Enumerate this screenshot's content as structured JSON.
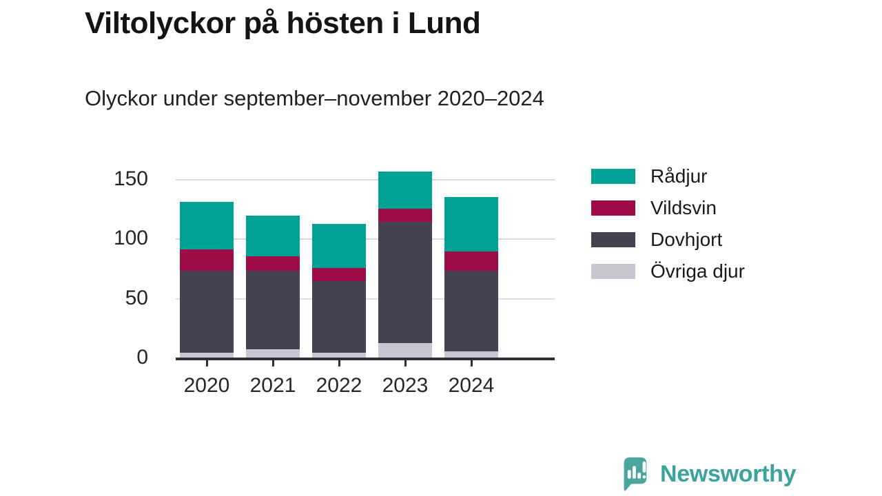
{
  "header": {
    "title": "Viltolyckor på hösten i Lund",
    "subtitle": "Olyckor under september–november 2020–2024"
  },
  "chart_data": {
    "type": "bar",
    "stacked": true,
    "title": "Viltolyckor på hösten i Lund",
    "subtitle": "Olyckor under september–november 2020–2024",
    "categories": [
      "2020",
      "2021",
      "2022",
      "2023",
      "2024"
    ],
    "series": [
      {
        "name": "Övriga djur",
        "color": "#c8c7d1",
        "values": [
          4,
          7,
          4,
          12,
          5
        ]
      },
      {
        "name": "Dovhjort",
        "color": "#444250",
        "values": [
          69,
          66,
          60,
          102,
          68
        ]
      },
      {
        "name": "Vildsvin",
        "color": "#a00c48",
        "values": [
          18,
          12,
          11,
          11,
          16
        ]
      },
      {
        "name": "Rådjur",
        "color": "#00a296",
        "values": [
          40,
          34,
          37,
          31,
          46
        ]
      }
    ],
    "totals": [
      131,
      119,
      112,
      156,
      135
    ],
    "xlabel": "",
    "ylabel": "",
    "y_ticks": [
      0,
      50,
      100,
      150
    ],
    "ylim": [
      0,
      162
    ],
    "grid": "horizontal",
    "legend_position": "right",
    "legend_order": [
      "Rådjur",
      "Vildsvin",
      "Dovhjort",
      "Övriga djur"
    ]
  },
  "colors": {
    "axis": "#302f38",
    "gridline": "#dcdcdf",
    "tick_text": "#262626",
    "brand": "#3aa39b",
    "brand_icon": "#4aa59e"
  },
  "footer": {
    "brand": "Newsworthy"
  }
}
